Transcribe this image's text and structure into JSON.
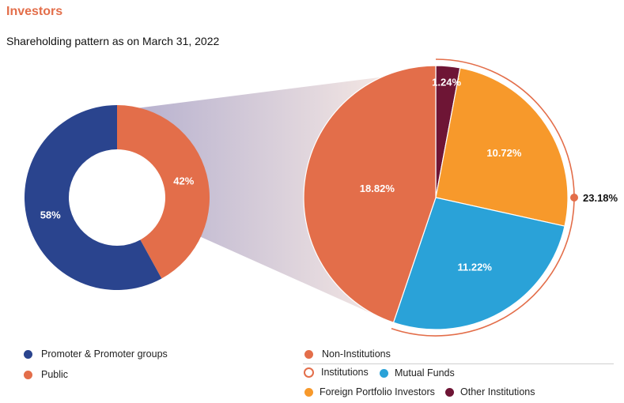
{
  "header": {
    "title": "Investors",
    "subtitle": "Shareholding pattern as on March 31, 2022"
  },
  "colors": {
    "accent": "#e36e4a",
    "promoter": "#2a448e",
    "public": "#e36e4a",
    "non_institutions": "#e36e4a",
    "mutual_funds": "#2aa2d8",
    "fpi": "#f7992b",
    "other_institutions": "#6e1535"
  },
  "chart_data": [
    {
      "type": "pie",
      "variant": "donut",
      "slices": [
        {
          "label": "Promoter & Promoter groups",
          "value": 58,
          "display": "58%",
          "color": "#2a448e"
        },
        {
          "label": "Public",
          "value": 42,
          "display": "42%",
          "color": "#e36e4a"
        }
      ]
    },
    {
      "type": "pie",
      "breakdown_of": "Public",
      "slices": [
        {
          "label": "Other Institutions",
          "value": 1.24,
          "display": "1.24%",
          "color": "#6e1535"
        },
        {
          "label": "Foreign Portfolio Investors",
          "value": 10.72,
          "display": "10.72%",
          "color": "#f7992b"
        },
        {
          "label": "Mutual Funds",
          "value": 11.22,
          "display": "11.22%",
          "color": "#2aa2d8"
        },
        {
          "label": "Non-Institutions",
          "value": 18.82,
          "display": "18.82%",
          "color": "#e36e4a"
        }
      ],
      "group_annotation": {
        "label": "Institutions",
        "value": 23.18,
        "display": "23.18%"
      }
    }
  ],
  "legend": {
    "promoter": "Promoter & Promoter groups",
    "public": "Public",
    "non_institutions": "Non-Institutions",
    "institutions": "Institutions",
    "mutual_funds": "Mutual Funds",
    "fpi": "Foreign Portfolio Investors",
    "other_institutions": "Other Institutions"
  }
}
